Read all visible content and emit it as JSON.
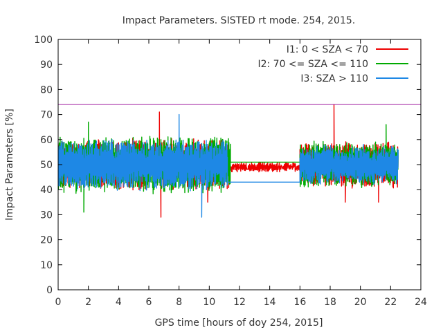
{
  "chart_data": {
    "type": "line",
    "title": "Impact Parameters. SISTED rt mode. 254, 2015.",
    "xlabel": "GPS time [hours of doy 254, 2015]",
    "ylabel": "Impact Parameters [%]",
    "xlim": [
      0,
      24
    ],
    "ylim": [
      0,
      100
    ],
    "x_ticks": [
      0,
      2,
      4,
      6,
      8,
      10,
      12,
      14,
      16,
      18,
      20,
      22,
      24
    ],
    "y_ticks": [
      0,
      10,
      20,
      30,
      40,
      50,
      60,
      70,
      80,
      90,
      100
    ],
    "grid": false,
    "legend_position": "top-right",
    "reference_line": {
      "y": 74,
      "color": "#a020a0"
    },
    "series": [
      {
        "name": "I1: 0 < SZA < 70",
        "color": "#ee0000",
        "segments": [
          {
            "x_range": [
              0,
              11.3
            ],
            "mean": 50,
            "spread": 8,
            "outliers": [
              [
                6.7,
                71
              ],
              [
                6.8,
                29
              ],
              [
                9.9,
                35
              ]
            ]
          },
          {
            "x_range": [
              11.4,
              16.0
            ],
            "mean": 49,
            "spread": 0.5,
            "outliers": []
          },
          {
            "x_range": [
              16.0,
              22.5
            ],
            "mean": 50,
            "spread": 7,
            "outliers": [
              [
                18.25,
                74
              ],
              [
                19.0,
                35
              ],
              [
                21.2,
                35
              ]
            ]
          }
        ]
      },
      {
        "name": "I2: 70 <= SZA <= 110",
        "color": "#00aa00",
        "segments": [
          {
            "x_range": [
              0,
              11.4
            ],
            "mean": 50,
            "spread": 9,
            "outliers": [
              [
                1.7,
                31
              ],
              [
                2.0,
                67
              ]
            ]
          },
          {
            "x_range": [
              11.4,
              16.0
            ],
            "mean": 51,
            "spread": 0,
            "outliers": []
          },
          {
            "x_range": [
              16.0,
              22.5
            ],
            "mean": 50,
            "spread": 7,
            "outliers": [
              [
                21.7,
                66
              ]
            ]
          }
        ]
      },
      {
        "name": "I3: SZA > 110",
        "color": "#1e88e5",
        "segments": [
          {
            "x_range": [
              0,
              11.2
            ],
            "mean": 50,
            "spread": 8,
            "outliers": [
              [
                8.0,
                70
              ],
              [
                9.5,
                29
              ]
            ]
          },
          {
            "x_range": [
              11.2,
              16.0
            ],
            "mean": 43,
            "spread": 0,
            "outliers": []
          },
          {
            "x_range": [
              16.0,
              22.5
            ],
            "mean": 50,
            "spread": 6,
            "outliers": []
          }
        ]
      }
    ]
  }
}
